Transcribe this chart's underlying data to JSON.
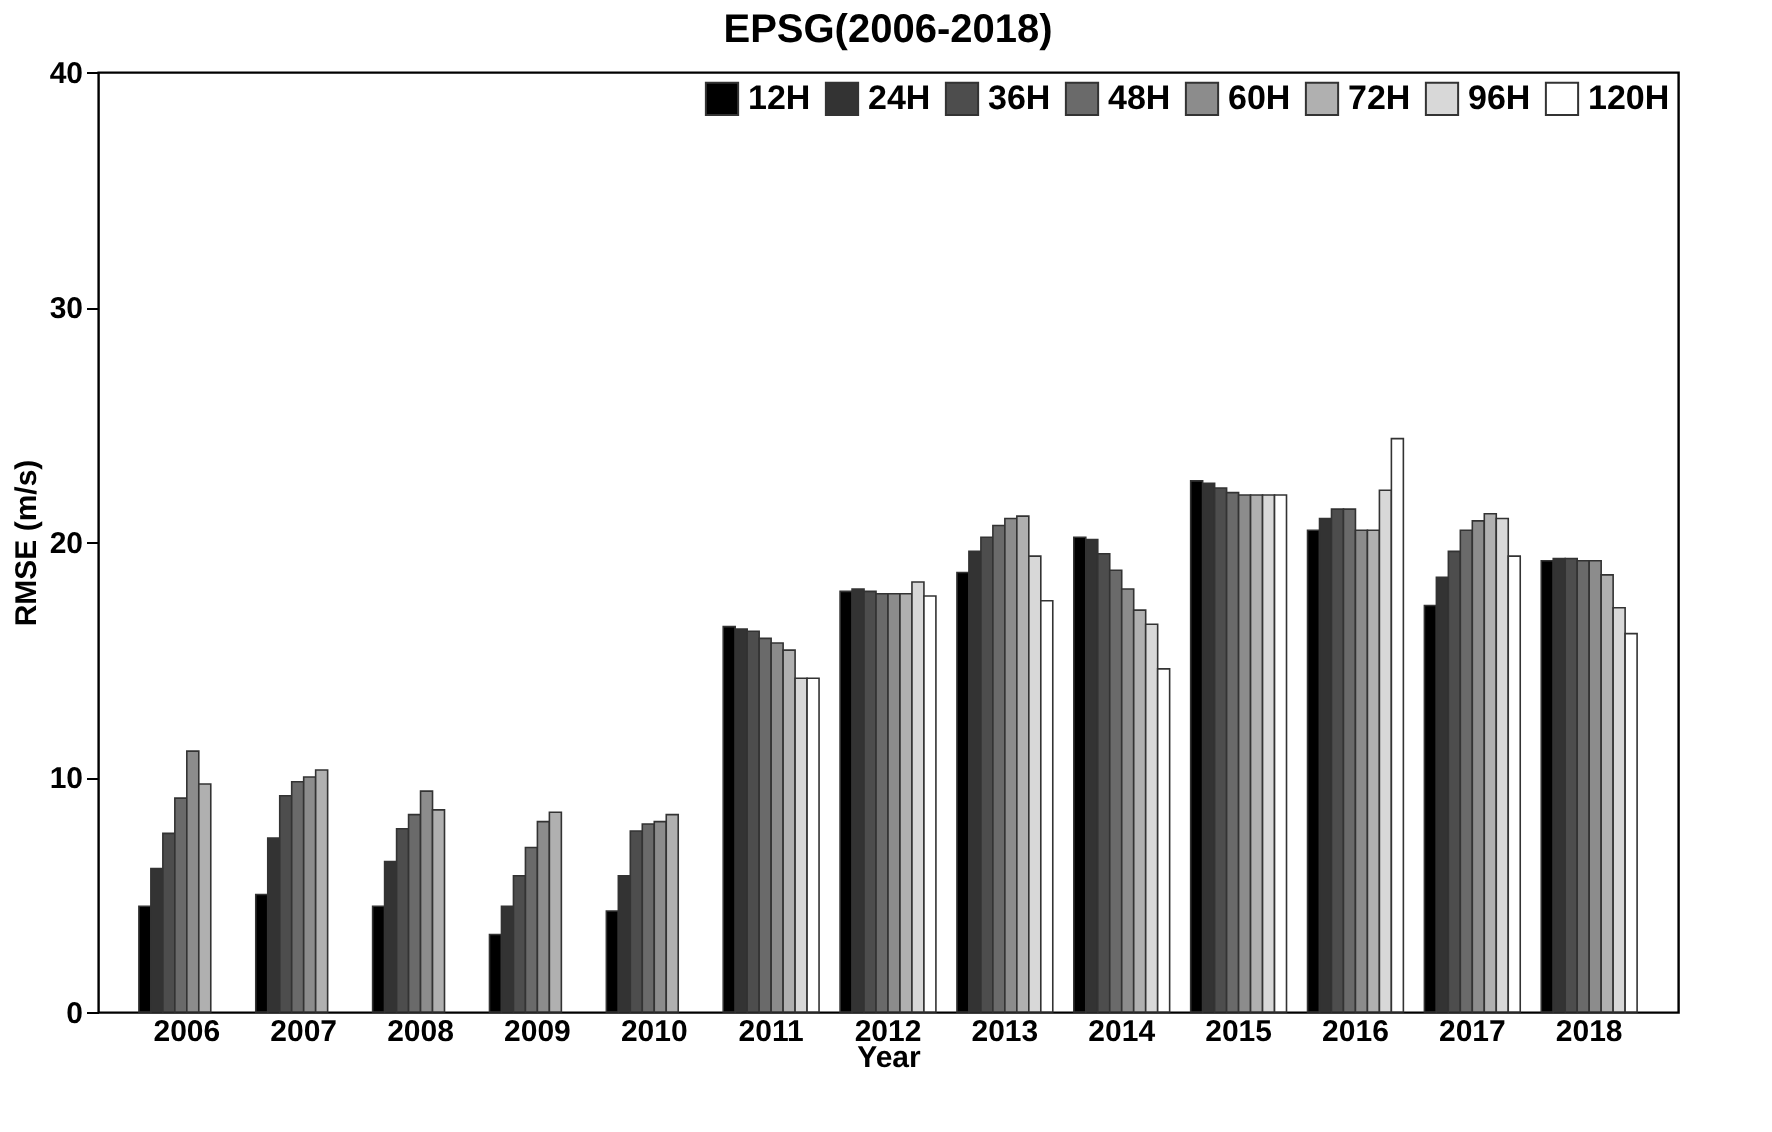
{
  "chart_data": {
    "type": "bar",
    "title": "EPSG(2006-2018)",
    "xlabel": "Year",
    "ylabel": "RMSE (m/s)",
    "categories": [
      "2006",
      "2007",
      "2008",
      "2009",
      "2010",
      "2011",
      "2012",
      "2013",
      "2014",
      "2015",
      "2016",
      "2017",
      "2018"
    ],
    "ylim": [
      0,
      40
    ],
    "yticks": [
      0,
      10,
      20,
      30,
      40
    ],
    "grid": false,
    "legend": "top right",
    "series": [
      {
        "name": "12H",
        "color": "#000000",
        "values": [
          4.5,
          5.0,
          4.5,
          3.3,
          4.3,
          16.4,
          17.9,
          18.7,
          20.2,
          22.6,
          20.5,
          17.3,
          19.2
        ]
      },
      {
        "name": "24H",
        "color": "#333333",
        "values": [
          6.1,
          7.4,
          6.4,
          4.5,
          5.8,
          16.3,
          18.0,
          19.6,
          20.1,
          22.5,
          21.0,
          18.5,
          19.3
        ]
      },
      {
        "name": "36H",
        "color": "#4d4d4d",
        "values": [
          7.6,
          9.2,
          7.8,
          5.8,
          7.7,
          16.2,
          17.9,
          20.2,
          19.5,
          22.3,
          21.4,
          19.6,
          19.3
        ]
      },
      {
        "name": "48H",
        "color": "#6a6a6a",
        "values": [
          9.1,
          9.8,
          8.4,
          7.0,
          8.0,
          15.9,
          17.8,
          20.7,
          18.8,
          22.1,
          21.4,
          20.5,
          19.2
        ]
      },
      {
        "name": "60H",
        "color": "#8c8c8c",
        "values": [
          11.1,
          10.0,
          9.4,
          8.1,
          8.1,
          15.7,
          17.8,
          21.0,
          18.0,
          22.0,
          20.5,
          20.9,
          19.2
        ]
      },
      {
        "name": "72H",
        "color": "#b0b0b0",
        "values": [
          9.7,
          10.3,
          8.6,
          8.5,
          8.4,
          15.4,
          17.8,
          21.1,
          17.1,
          22.0,
          20.5,
          21.2,
          18.6
        ]
      },
      {
        "name": "96H",
        "color": "#d8d8d8",
        "values": [
          null,
          null,
          null,
          null,
          null,
          14.2,
          18.3,
          19.4,
          16.5,
          22.0,
          22.2,
          21.0,
          17.2
        ]
      },
      {
        "name": "120H",
        "color": "#ffffff",
        "values": [
          null,
          null,
          null,
          null,
          null,
          14.2,
          17.7,
          17.5,
          14.6,
          22.0,
          24.4,
          19.4,
          16.1
        ]
      }
    ]
  }
}
